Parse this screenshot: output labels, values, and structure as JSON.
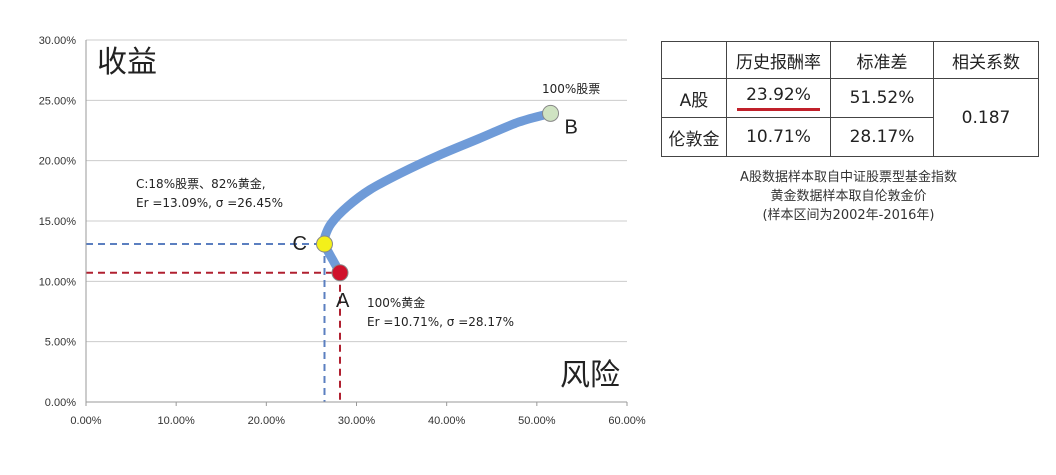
{
  "chart_data": {
    "type": "line",
    "xlabel": "风险",
    "ylabel": "收益",
    "xlim": [
      0,
      60
    ],
    "ylim": [
      0,
      30
    ],
    "x_ticks": [
      "0.00%",
      "10.00%",
      "20.00%",
      "30.00%",
      "40.00%",
      "50.00%",
      "60.00%"
    ],
    "y_ticks": [
      "0.00%",
      "5.00%",
      "10.00%",
      "15.00%",
      "20.00%",
      "25.00%",
      "30.00%"
    ],
    "grid": "horizontal",
    "series": [
      {
        "points": [
          {
            "x": 28.17,
            "y": 10.71
          },
          {
            "x": 27.5,
            "y": 11.6
          },
          {
            "x": 26.9,
            "y": 12.4
          },
          {
            "x": 26.45,
            "y": 13.09
          },
          {
            "x": 26.5,
            "y": 13.7
          },
          {
            "x": 27.2,
            "y": 14.8
          },
          {
            "x": 29.0,
            "y": 16.2
          },
          {
            "x": 31.5,
            "y": 17.6
          },
          {
            "x": 35.0,
            "y": 19.0
          },
          {
            "x": 39.0,
            "y": 20.4
          },
          {
            "x": 43.5,
            "y": 21.8
          },
          {
            "x": 48.0,
            "y": 23.2
          },
          {
            "x": 51.52,
            "y": 23.92
          }
        ]
      }
    ],
    "points": [
      {
        "id": "A",
        "x": 28.17,
        "y": 10.71,
        "color": "#d0112b",
        "label": "A"
      },
      {
        "id": "B",
        "x": 51.52,
        "y": 23.92,
        "color": "#cfe3c2",
        "label": "B"
      },
      {
        "id": "C",
        "x": 26.45,
        "y": 13.09,
        "color": "#f3f01a",
        "label": "C"
      }
    ],
    "guide_lines": [
      {
        "color": "#5b7fc0",
        "x": 26.45,
        "y": 13.09
      },
      {
        "color": "#b02030",
        "x": 28.17,
        "y": 10.71
      }
    ],
    "annotations": {
      "a_line1": "100%黄金",
      "a_line2": "Er =10.71%, σ =28.17%",
      "b_line1": "100%股票",
      "c_line1": "C:18%股票、82%黄金,",
      "c_line2": "Er =13.09%, σ =26.45%"
    },
    "colors": {
      "curve": "#6f9bd8",
      "axis": "#999999",
      "grid": "#cccccc"
    }
  },
  "stats_table": {
    "headers": [
      "",
      "历史报酬率",
      "标准差",
      "相关系数"
    ],
    "rows": [
      {
        "name": "A股",
        "return": "23.92%",
        "std": "51.52%"
      },
      {
        "name": "伦敦金",
        "return": "10.71%",
        "std": "28.17%"
      }
    ],
    "correlation": "0.187",
    "highlight_color": "#c0202a"
  },
  "notes": [
    "A股数据样本取自中证股票型基金指数",
    "黄金数据样本取自伦敦金价",
    "(样本区间为2002年-2016年)"
  ]
}
